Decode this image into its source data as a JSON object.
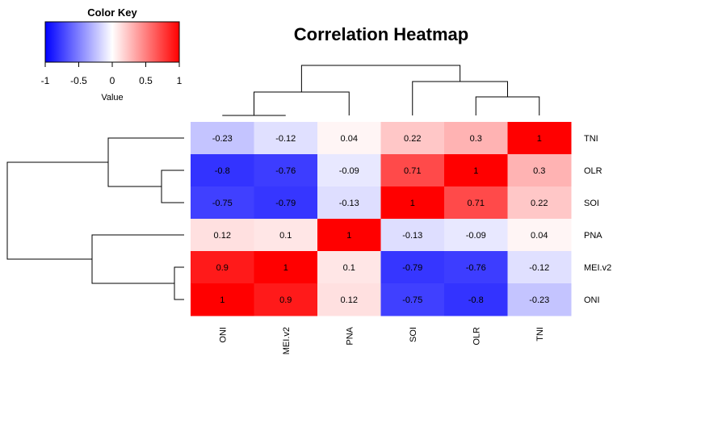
{
  "chart_data": {
    "type": "heatmap",
    "title": "Correlation Heatmap",
    "columns": [
      "ONI",
      "MEI.v2",
      "PNA",
      "SOI",
      "OLR",
      "TNI"
    ],
    "rows": [
      "TNI",
      "OLR",
      "SOI",
      "PNA",
      "MEI.v2",
      "ONI"
    ],
    "values": [
      [
        -0.23,
        -0.12,
        0.04,
        0.22,
        0.3,
        1
      ],
      [
        -0.8,
        -0.76,
        -0.09,
        0.71,
        1,
        0.3
      ],
      [
        -0.75,
        -0.79,
        -0.13,
        1,
        0.71,
        0.22
      ],
      [
        0.12,
        0.1,
        1,
        -0.13,
        -0.09,
        0.04
      ],
      [
        0.9,
        1,
        0.1,
        -0.79,
        -0.76,
        -0.12
      ],
      [
        1,
        0.9,
        0.12,
        -0.75,
        -0.8,
        -0.23
      ]
    ],
    "value_labels": [
      [
        "-0.23",
        "-0.12",
        "0.04",
        "0.22",
        "0.3",
        "1"
      ],
      [
        "-0.8",
        "-0.76",
        "-0.09",
        "0.71",
        "1",
        "0.3"
      ],
      [
        "-0.75",
        "-0.79",
        "-0.13",
        "1",
        "0.71",
        "0.22"
      ],
      [
        "0.12",
        "0.1",
        "1",
        "-0.13",
        "-0.09",
        "0.04"
      ],
      [
        "0.9",
        "1",
        "0.1",
        "-0.79",
        "-0.76",
        "-0.12"
      ],
      [
        "1",
        "0.9",
        "0.12",
        "-0.75",
        "-0.8",
        "-0.23"
      ]
    ],
    "color_key": {
      "title": "Color Key",
      "xlabel": "Value",
      "range": [
        -1,
        1
      ],
      "ticks": [
        -1,
        -0.5,
        0,
        0.5,
        1
      ],
      "tick_labels": [
        "-1",
        "-0.5",
        "0",
        "0.5",
        "1"
      ],
      "low_color": "#0000ff",
      "mid_color": "#ffffff",
      "high_color": "#ff0000"
    },
    "row_dendrogram": "((TNI,(OLR,SOI)),(PNA,(MEI.v2,ONI)))",
    "column_dendrogram": "(((ONI,MEI.v2),PNA),(SOI,(OLR,TNI)))"
  }
}
